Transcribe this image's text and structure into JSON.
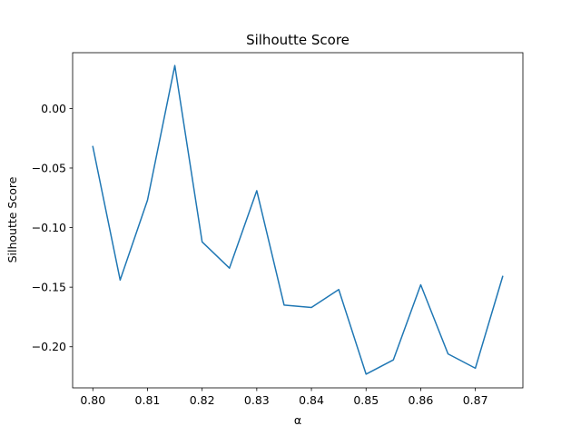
{
  "chart_data": {
    "type": "line",
    "title": "Silhoutte Score",
    "xlabel": "α",
    "ylabel": "Silhoutte Score",
    "xlim": [
      0.7963,
      0.8787
    ],
    "ylim": [
      -0.2345,
      0.0468
    ],
    "xticks": [
      0.8,
      0.81,
      0.82,
      0.83,
      0.84,
      0.85,
      0.86,
      0.87
    ],
    "xtick_labels": [
      "0.80",
      "0.81",
      "0.82",
      "0.83",
      "0.84",
      "0.85",
      "0.86",
      "0.87"
    ],
    "yticks": [
      0.0,
      -0.05,
      -0.1,
      -0.15,
      -0.2
    ],
    "ytick_labels": [
      "0.00",
      "−0.05",
      "−0.10",
      "−0.15",
      "−0.20"
    ],
    "grid": false,
    "series": [
      {
        "color": "#1f77b4",
        "x": [
          0.8,
          0.805,
          0.81,
          0.815,
          0.82,
          0.825,
          0.83,
          0.835,
          0.84,
          0.845,
          0.85,
          0.855,
          0.86,
          0.865,
          0.87,
          0.875
        ],
        "y": [
          -0.032,
          -0.144,
          -0.077,
          0.036,
          -0.112,
          -0.134,
          -0.069,
          -0.165,
          -0.167,
          -0.152,
          -0.223,
          -0.211,
          -0.148,
          -0.206,
          -0.218,
          -0.141
        ]
      }
    ]
  }
}
